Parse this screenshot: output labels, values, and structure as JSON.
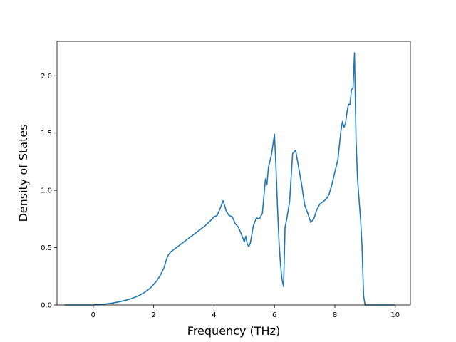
{
  "chart_data": {
    "type": "line",
    "title": "",
    "xlabel": "Frequency (THz)",
    "ylabel": "Density of States",
    "xlim": [
      -1.2,
      10.5
    ],
    "ylim": [
      0.0,
      2.3
    ],
    "xticks": [
      0,
      2,
      4,
      6,
      8,
      10
    ],
    "xtick_labels": [
      "0",
      "2",
      "4",
      "6",
      "8",
      "10"
    ],
    "yticks": [
      0.0,
      0.5,
      1.0,
      1.5,
      2.0
    ],
    "ytick_labels": [
      "0.0",
      "0.5",
      "1.0",
      "1.5",
      "2.0"
    ],
    "grid": false,
    "legend": "none",
    "line_color": "#1f77b4",
    "series": [
      {
        "x": [
          -0.95,
          -0.5,
          0.0,
          0.3,
          0.6,
          0.9,
          1.2,
          1.5,
          1.7,
          1.9,
          2.0,
          2.1,
          2.2,
          2.3,
          2.35,
          2.45,
          2.55,
          2.7,
          2.9,
          3.1,
          3.3,
          3.5,
          3.7,
          3.9,
          4.0,
          4.1,
          4.2,
          4.3,
          4.4,
          4.5,
          4.6,
          4.7,
          4.8,
          4.9,
          5.0,
          5.05,
          5.1,
          5.15,
          5.2,
          5.3,
          5.4,
          5.5,
          5.6,
          5.7,
          5.75,
          5.8,
          5.9,
          6.0,
          6.05,
          6.1,
          6.15,
          6.2,
          6.25,
          6.3,
          6.35,
          6.4,
          6.5,
          6.6,
          6.7,
          6.8,
          6.9,
          7.0,
          7.1,
          7.2,
          7.3,
          7.4,
          7.5,
          7.7,
          7.8,
          7.9,
          8.0,
          8.1,
          8.2,
          8.25,
          8.3,
          8.35,
          8.4,
          8.45,
          8.5,
          8.55,
          8.6,
          8.65,
          8.7,
          8.75,
          8.8,
          8.85,
          8.9,
          8.95,
          9.0,
          9.05,
          9.1,
          10.0
        ],
        "y": [
          0.0,
          0.0,
          0.0,
          0.005,
          0.015,
          0.03,
          0.05,
          0.08,
          0.11,
          0.15,
          0.18,
          0.21,
          0.25,
          0.3,
          0.33,
          0.42,
          0.46,
          0.49,
          0.53,
          0.57,
          0.61,
          0.65,
          0.69,
          0.74,
          0.77,
          0.78,
          0.84,
          0.91,
          0.82,
          0.78,
          0.77,
          0.71,
          0.68,
          0.62,
          0.55,
          0.6,
          0.53,
          0.51,
          0.54,
          0.69,
          0.76,
          0.75,
          0.8,
          1.1,
          1.05,
          1.2,
          1.31,
          1.49,
          1.2,
          0.85,
          0.55,
          0.35,
          0.22,
          0.16,
          0.68,
          0.74,
          0.9,
          1.32,
          1.35,
          1.2,
          1.05,
          0.87,
          0.8,
          0.72,
          0.75,
          0.83,
          0.88,
          0.92,
          0.96,
          1.05,
          1.16,
          1.27,
          1.52,
          1.6,
          1.55,
          1.58,
          1.68,
          1.75,
          1.75,
          1.88,
          1.89,
          2.2,
          1.45,
          1.1,
          0.92,
          0.75,
          0.5,
          0.08,
          0.0,
          0.0,
          0.0,
          0.0
        ]
      }
    ]
  }
}
